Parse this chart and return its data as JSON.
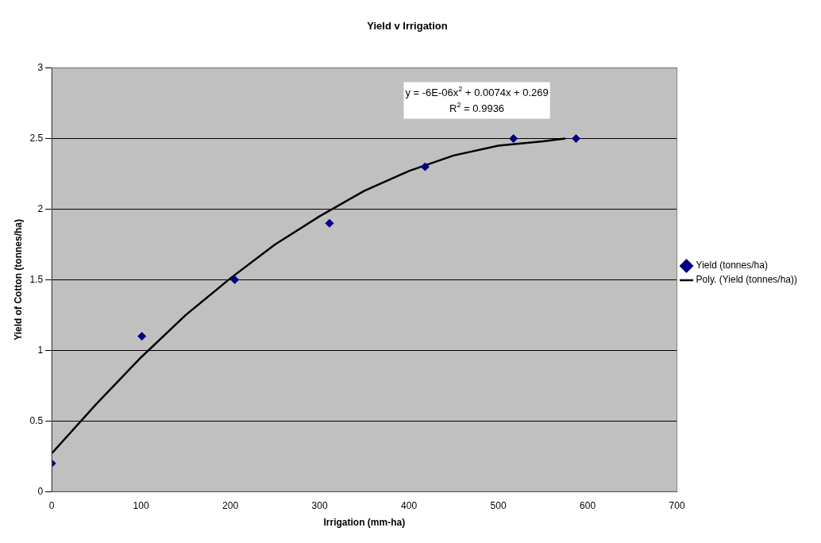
{
  "chart_data": {
    "type": "scatter",
    "title": "Yield v Irrigation",
    "xlabel": "Irrigation (mm-ha)",
    "ylabel": "Yield of Cotton (tonnes/ha)",
    "x": [
      0,
      101,
      205,
      311,
      418,
      517,
      587
    ],
    "series": [
      {
        "name": "Yield (tonnes/ha)",
        "color": "#000080",
        "values": [
          0.2,
          1.1,
          1.5,
          1.9,
          2.3,
          2.5,
          2.5
        ],
        "marker": "diamond"
      },
      {
        "name": "Poly. (Yield (tonnes/ha))",
        "type": "line",
        "color": "#000000",
        "marker": "none",
        "x": [
          0,
          50,
          100,
          150,
          200,
          250,
          300,
          350,
          400,
          450,
          500,
          550,
          575
        ],
        "values": [
          0.27,
          0.62,
          0.95,
          1.25,
          1.51,
          1.75,
          1.95,
          2.13,
          2.27,
          2.38,
          2.45,
          2.48,
          2.5
        ]
      }
    ],
    "xlim": [
      0,
      700
    ],
    "xticks": [
      0,
      100,
      200,
      300,
      400,
      500,
      600,
      700
    ],
    "ylim": [
      0,
      3
    ],
    "yticks": [
      0,
      0.5,
      1,
      1.5,
      2,
      2.5,
      3
    ],
    "grid": "y",
    "legend": "right",
    "annotations": [
      "y = -6E-06x$^{2}$ + 0.0074x + 0.269",
      "R$^{2}$ = 0.9936"
    ]
  }
}
